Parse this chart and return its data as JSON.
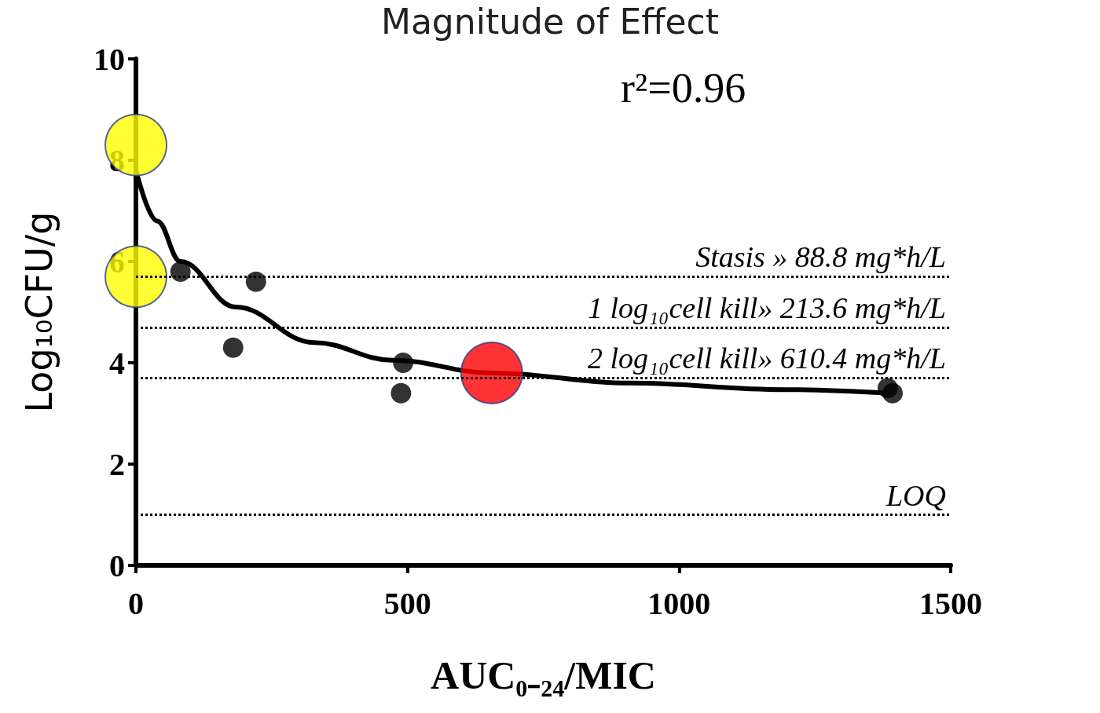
{
  "chart_data": {
    "type": "scatter",
    "title": "Magnitude of Effect",
    "xlabel": "AUC₀₋₂₄/MIC",
    "ylabel": "Log₁₀CFU/g",
    "xlim": [
      0,
      1500
    ],
    "xticks": [
      0,
      500,
      1000,
      1500
    ],
    "ylim": [
      0,
      10
    ],
    "yticks": [
      0,
      2,
      4,
      6,
      8,
      10
    ],
    "grid": false,
    "marker": "circle",
    "annotations": [
      "r²=0.96"
    ],
    "ref_lines": [
      {
        "axis": "y",
        "value": 5.7,
        "label": "Stasis » 88.8 mg*h/L",
        "line_style": "dotted"
      },
      {
        "axis": "y",
        "value": 4.7,
        "label": "1 log₁₀cell kill» 213.6 mg*h/L",
        "line_style": "dotted"
      },
      {
        "axis": "y",
        "value": 3.7,
        "label": "2 log₁₀cell kill» 610.4 mg*h/L",
        "line_style": "dotted"
      },
      {
        "axis": "y",
        "value": 1,
        "label": "LOQ",
        "line_style": "dotted"
      }
    ],
    "series": [
      {
        "color": "#000000",
        "x": [
          82,
          221,
          179,
          492,
          488,
          1384,
          1393
        ],
        "values": [
          5.8,
          5.6,
          4.3,
          4.0,
          3.4,
          3.5,
          3.4
        ]
      },
      {
        "color": "#ffff00",
        "x": [
          0,
          0
        ],
        "values": [
          8.3,
          5.7
        ]
      },
      {
        "color": "#ff0000",
        "x": [
          655
        ],
        "values": [
          3.8
        ]
      },
      {
        "type": "line",
        "color": "#000000",
        "marker": "none",
        "line_style": "solid",
        "x": [
          0,
          39,
          82,
          184,
          328,
          473,
          655,
          907,
          1196,
          1384
        ],
        "values": [
          7.8,
          6.8,
          6.0,
          5.1,
          4.4,
          4.05,
          3.8,
          3.6,
          3.47,
          3.4
        ]
      }
    ]
  }
}
